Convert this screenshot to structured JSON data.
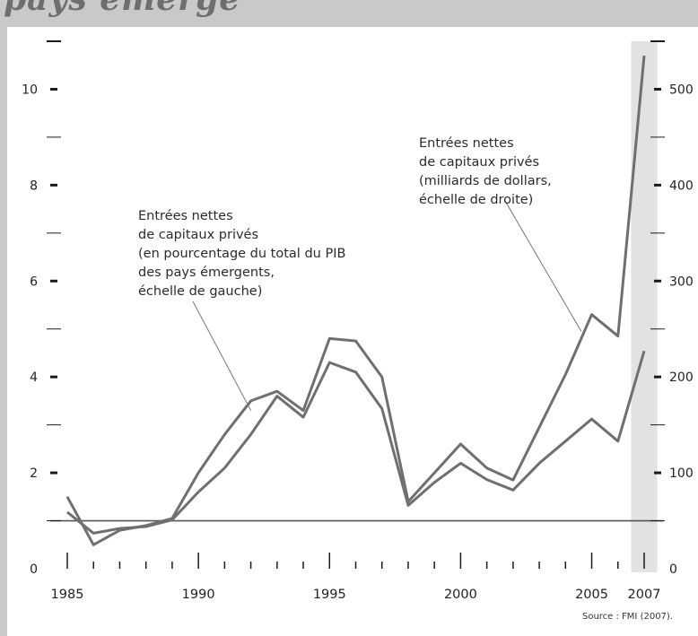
{
  "header": {
    "title_fragment": "pays émerge"
  },
  "source": "Source : FMI (2007).",
  "chart_data": {
    "type": "line",
    "x_tick_labels": [
      "1985",
      "1990",
      "1995",
      "2000",
      "2005",
      "2007"
    ],
    "left_axis": {
      "ticks": [
        0,
        2,
        4,
        6,
        8,
        10
      ],
      "range": [
        0,
        11
      ]
    },
    "right_axis": {
      "ticks": [
        0,
        100,
        200,
        300,
        400,
        500
      ],
      "range": [
        0,
        550
      ]
    },
    "reference_line_y": 1,
    "highlight_band": {
      "from": 2006.5,
      "to": 2007.5,
      "color": "#e2e2e2"
    },
    "x": [
      1985,
      1986,
      1987,
      1988,
      1989,
      1990,
      1991,
      1992,
      1993,
      1994,
      1995,
      1996,
      1997,
      1998,
      1999,
      2000,
      2001,
      2002,
      2003,
      2004,
      2005,
      2006,
      2007
    ],
    "series": [
      {
        "name": "Entrées nettes de capitaux privés (en pourcentage du total du PIB des pays émergents, échelle de gauche)",
        "axis": "left",
        "values": [
          1.5,
          0.5,
          0.8,
          0.9,
          1.05,
          2.0,
          2.8,
          3.5,
          3.7,
          3.3,
          4.8,
          4.75,
          4.0,
          1.4,
          2.0,
          2.6,
          2.1,
          1.85,
          2.95,
          4.05,
          5.3,
          4.85,
          10.7
        ]
      },
      {
        "name": "Entrées nettes de capitaux privés (milliards de dollars, échelle de droite)",
        "axis": "right",
        "values": [
          59,
          37,
          42,
          44,
          51,
          80,
          105,
          140,
          180,
          158,
          215,
          205,
          167,
          66,
          90,
          110,
          93,
          82,
          110,
          133,
          156,
          133,
          227
        ]
      }
    ],
    "annotations": [
      {
        "lines": [
          "Entrées nettes",
          "de capitaux privés",
          "(en pourcentage du total du PIB",
          "des pays émergents,",
          "échelle de gauche)"
        ],
        "target": {
          "x": 1992,
          "y": 3.3,
          "axis": "left"
        }
      },
      {
        "lines": [
          "Entrées nettes",
          "de capitaux privés",
          "(milliards de dollars,",
          "échelle de droite)"
        ],
        "target": {
          "x": 2004.6,
          "y": 4.95,
          "axis": "left"
        }
      }
    ],
    "colors": {
      "line": "#6f6f6f",
      "axis": "#1a1a1a",
      "leader": "#777777",
      "reference": "#555555"
    }
  }
}
